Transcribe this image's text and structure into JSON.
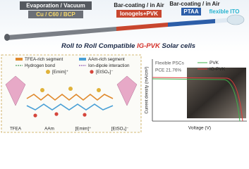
{
  "header": {
    "evaporation": "Evaporation / Vacuum",
    "top_layers": "Cu / C60 / BCP",
    "coating_1": "Bar-coating / in Air",
    "ionogel": "Ionogels+PVK",
    "coating_2": "Bar-coating / in Air",
    "htl": "PTAA",
    "substrate": "flexible ITO"
  },
  "title": {
    "prefix": "Roll to Roll Compatible ",
    "highlight": "IG-PVK",
    "suffix": " Solar cells"
  },
  "diagram": {
    "legend": [
      "TFEA-rich segment",
      "AAm-rich segment",
      "Hydrogen bond",
      "Ion-dipole interaction",
      "[Emim]⁺",
      "[EtSO₄]⁻"
    ],
    "molecules": [
      "TFEA",
      "AAm",
      "[Emim]⁺",
      "[EtSO₄]⁻"
    ]
  },
  "plot": {
    "y_label": "Current density (mA/cm²)",
    "x_label": "Voltage (V)",
    "note_1": "Flexible PSCs",
    "note_2": "PCE 21.76%",
    "legend": [
      "PVK",
      "IG-PVK"
    ]
  }
}
